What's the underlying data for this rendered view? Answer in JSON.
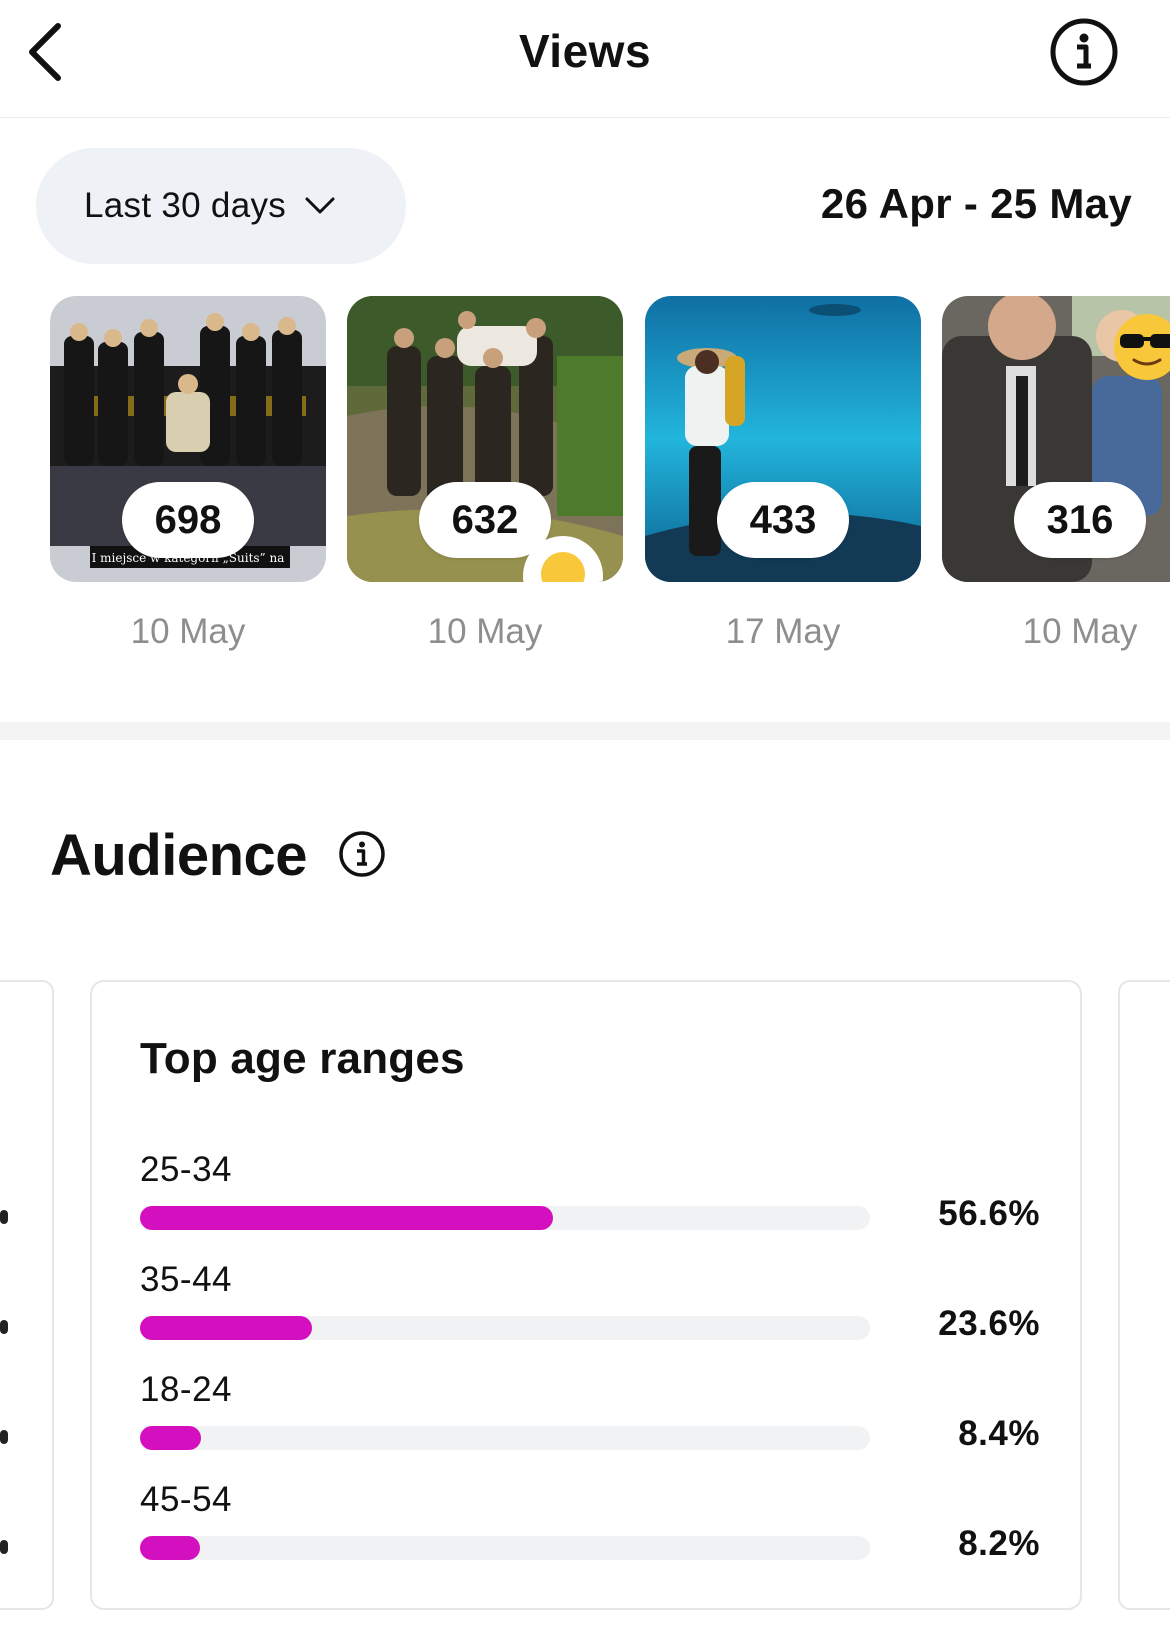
{
  "header": {
    "title": "Views",
    "back_icon": "chevron-left-icon",
    "info_icon": "info-icon"
  },
  "range": {
    "selected": "Last 30 days",
    "date_range": "26 Apr - 25 May"
  },
  "posts": [
    {
      "views": "698",
      "date": "10 May",
      "caption_overlay": "I miejsce w kategorii „Suits” na"
    },
    {
      "views": "632",
      "date": "10 May",
      "reaction_icon": "laughing-emoji-icon"
    },
    {
      "views": "433",
      "date": "17 May"
    },
    {
      "views": "316",
      "date": "10 May",
      "sticker_icon": "sunglasses-emoji-icon"
    }
  ],
  "audience": {
    "title": "Audience",
    "card_title": "Top age ranges",
    "accent_color": "#d30fc0",
    "age_ranges": [
      {
        "label": "25-34",
        "percent_text": "56.6%",
        "value": 56.6
      },
      {
        "label": "35-44",
        "percent_text": "23.6%",
        "value": 23.6
      },
      {
        "label": "18-24",
        "percent_text": "8.4%",
        "value": 8.4
      },
      {
        "label": "45-54",
        "percent_text": "8.2%",
        "value": 8.2
      }
    ]
  }
}
